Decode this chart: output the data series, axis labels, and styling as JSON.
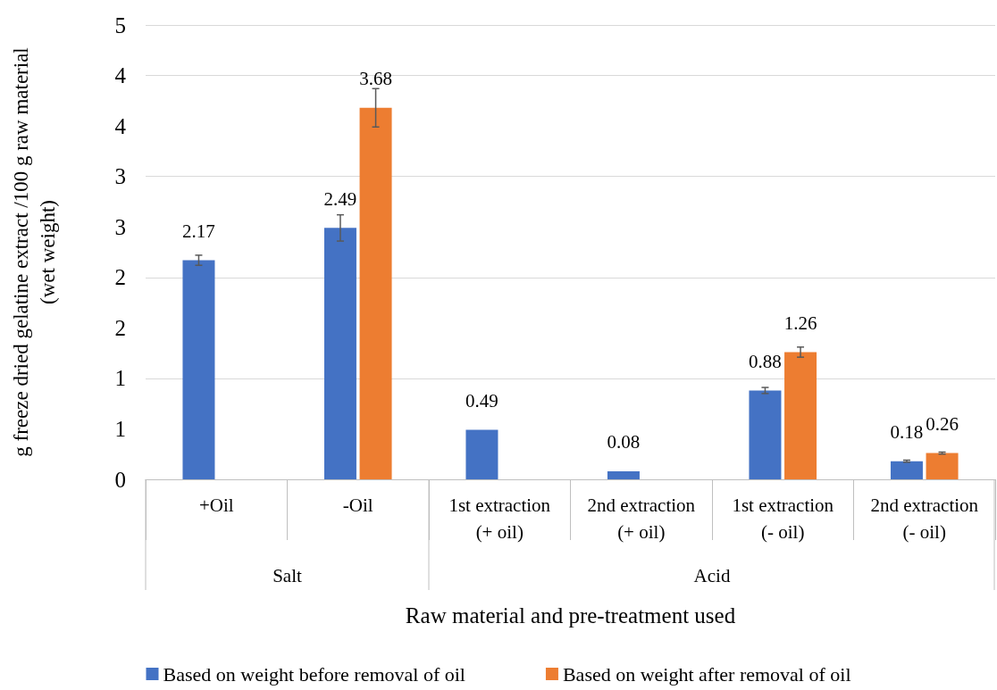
{
  "chart_data": {
    "type": "bar",
    "xlabel": "Raw material and pre-treatment used",
    "ylabel": "g freeze dried gelatine extract /100 g raw material\n(wet weight)",
    "categories": [
      "+Oil",
      "-Oil",
      "1st extraction\n(+ oil)",
      "2nd extraction\n(+ oil)",
      "1st extraction\n(- oil)",
      "2nd extraction\n(- oil)"
    ],
    "annotations": [
      "Salt",
      "Acid"
    ],
    "series": [
      {
        "name": "Based on weight before removal of oil",
        "color": "#4472c4",
        "values": [
          2.17,
          2.49,
          0.49,
          0.08,
          0.88,
          0.18
        ],
        "errors": [
          0.05,
          0.13,
          null,
          null,
          0.03,
          0.01
        ]
      },
      {
        "name": "Based on weight after removal of oil",
        "color": "#ed7d31",
        "values": [
          null,
          3.68,
          null,
          null,
          1.26,
          0.26
        ],
        "errors": [
          null,
          0.19,
          null,
          null,
          0.05,
          0.01
        ]
      }
    ],
    "ylim": [
      0,
      4.5
    ],
    "yticks": [
      0,
      {
        "value": 0.5,
        "label": "1"
      },
      1,
      {
        "value": 1.5,
        "label": "2"
      },
      2,
      {
        "value": 2.5,
        "label": "3"
      },
      3,
      {
        "value": 3.5,
        "label": "4"
      },
      4,
      {
        "value": 4.5,
        "label": "5"
      }
    ],
    "grid": "y",
    "legend": "bottom",
    "data_labels": true
  }
}
